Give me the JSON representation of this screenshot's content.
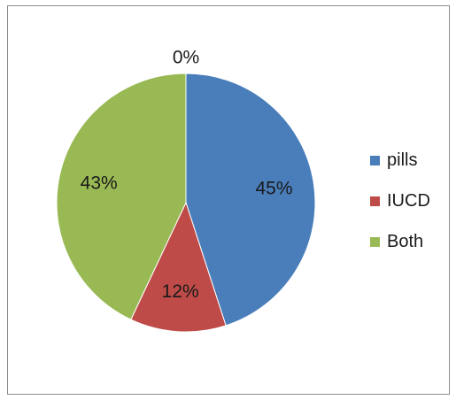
{
  "chart_data": {
    "type": "pie",
    "slices": [
      {
        "name": "pills",
        "value": 45,
        "label": "45%",
        "color": "#4a7ebb"
      },
      {
        "name": "IUCD",
        "value": 12,
        "label": "12%",
        "color": "#be4b48"
      },
      {
        "name": "Both",
        "value": 43,
        "label": "43%",
        "color": "#98b954"
      },
      {
        "name": "",
        "value": 0,
        "label": "0%",
        "color": "#7b5fa0"
      }
    ],
    "legend": {
      "placement": "right",
      "entries": [
        {
          "label": "pills",
          "color": "#4a7ebb"
        },
        {
          "label": "IUCD",
          "color": "#be4b48"
        },
        {
          "label": "Both",
          "color": "#98b954"
        }
      ]
    }
  }
}
